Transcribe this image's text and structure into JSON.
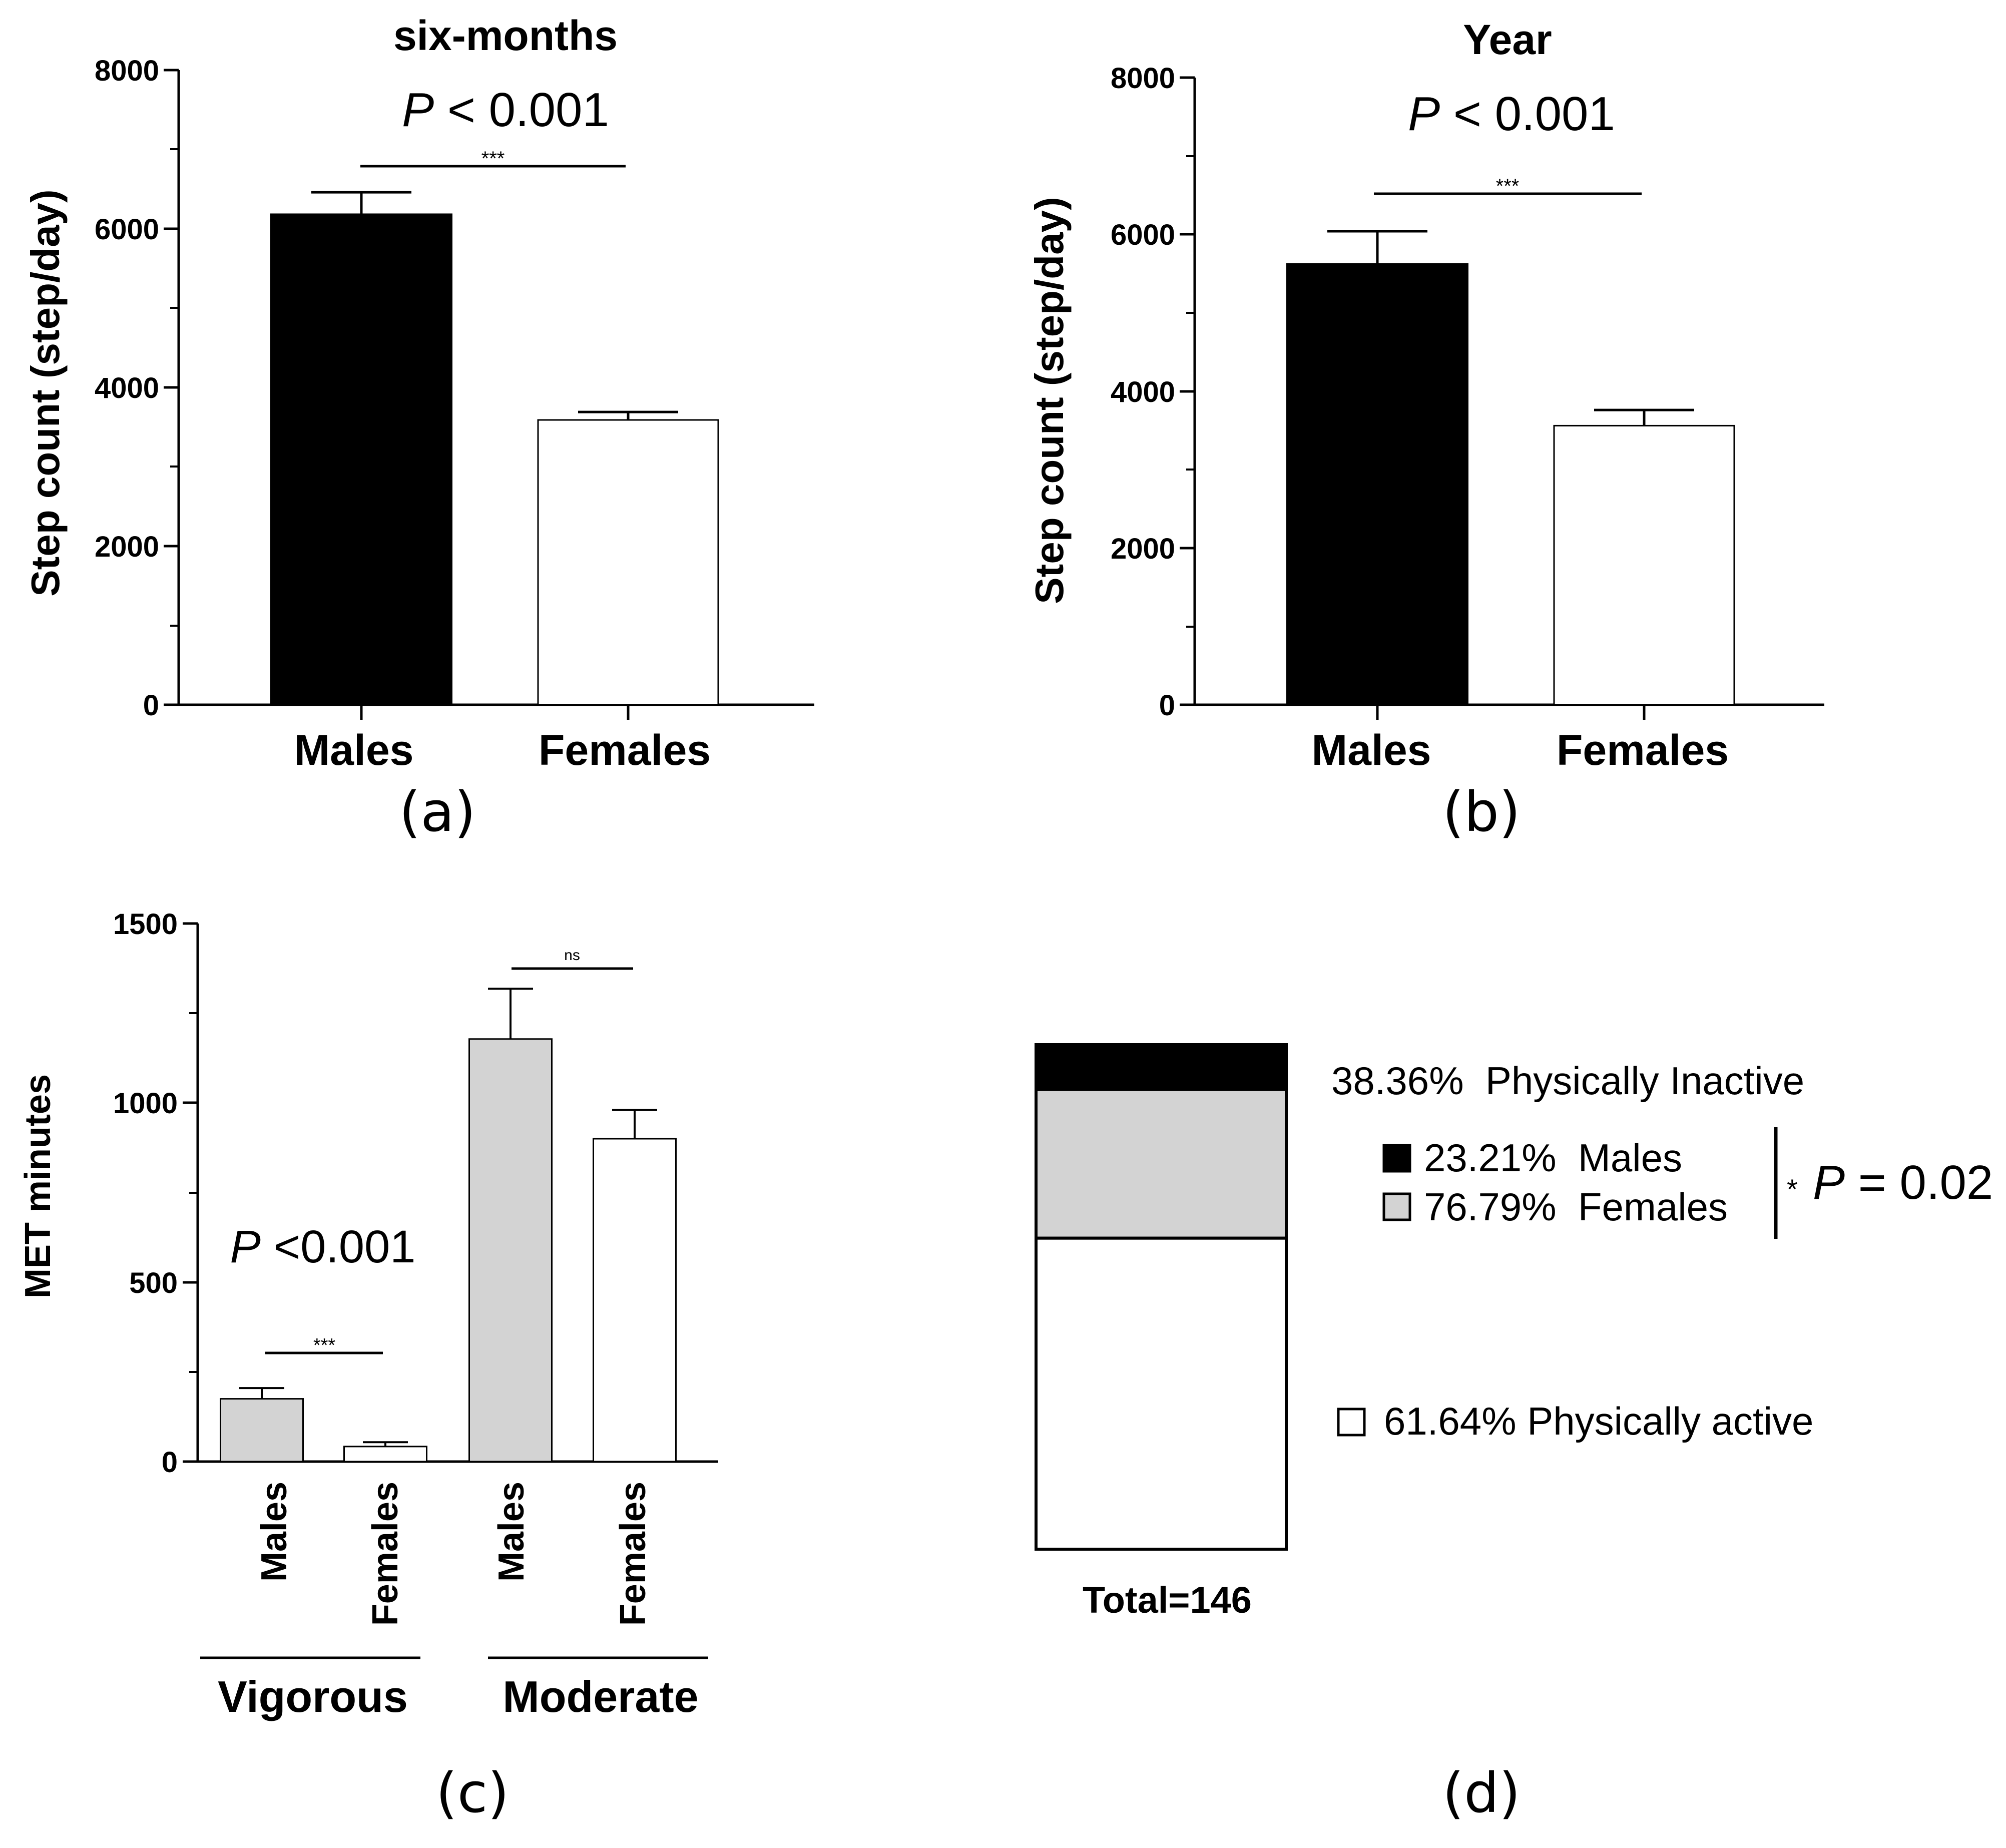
{
  "chart_data": [
    {
      "id": "a",
      "type": "bar",
      "title": "six-months",
      "panel_label": "(a)",
      "ylabel": "Step count (step/day)",
      "ylim": [
        0,
        8000
      ],
      "yticks": [
        "0",
        "2000",
        "4000",
        "6000",
        "8000"
      ],
      "categories": [
        "Males",
        "Females"
      ],
      "values": [
        6180,
        3590
      ],
      "errors": [
        280,
        100
      ],
      "fills": [
        "#000000",
        "#ffffff"
      ],
      "p_text": "P",
      "p_rest": " < 0.001",
      "sig": "***"
    },
    {
      "id": "b",
      "type": "bar",
      "title": "Year",
      "panel_label": "(b)",
      "ylabel": "Step count (step/day)",
      "ylim": [
        0,
        8000
      ],
      "yticks": [
        "0",
        "2000",
        "4000",
        "6000",
        "8000"
      ],
      "categories": [
        "Males",
        "Females"
      ],
      "values": [
        5620,
        3560
      ],
      "errors": [
        420,
        200
      ],
      "fills": [
        "#000000",
        "#ffffff"
      ],
      "p_text": "P",
      "p_rest": " < 0.001",
      "sig": "***"
    },
    {
      "id": "c",
      "type": "bar",
      "panel_label": "(c)",
      "ylabel": "MET minutes",
      "ylim": [
        0,
        1500
      ],
      "yticks": [
        "0",
        "500",
        "1000",
        "1500"
      ],
      "categories": [
        "Males",
        "Females",
        "Males",
        "Females"
      ],
      "groups": [
        "Vigorous",
        "Moderate"
      ],
      "values": [
        175,
        42,
        1178,
        900
      ],
      "errors": [
        30,
        12,
        140,
        80
      ],
      "fills": [
        "#d3d3d3",
        "#ffffff",
        "#d3d3d3",
        "#ffffff"
      ],
      "p_text": "P",
      "p_rest": " <0.001",
      "sig_vigorous": "***",
      "sig_moderate": "ns"
    },
    {
      "id": "d",
      "type": "stacked-bar",
      "panel_label": "(d)",
      "xlabel": "Total=146",
      "segments": [
        {
          "name": "Physically Inactive - Males",
          "fraction": 0.0891,
          "fill": "#000000"
        },
        {
          "name": "Physically Inactive - Females",
          "fraction": 0.2945,
          "fill": "#d3d3d3"
        },
        {
          "name": "Physically active",
          "fraction": 0.6164,
          "fill": "#ffffff"
        }
      ],
      "inactive_label": "38.36%  Physically Inactive",
      "males_label": "23.21%  Males",
      "females_label": "76.79%  Females",
      "active_label": "61.64% Physically active",
      "p_star": "*",
      "p_text": "P",
      "p_rest": " = 0.02"
    }
  ]
}
